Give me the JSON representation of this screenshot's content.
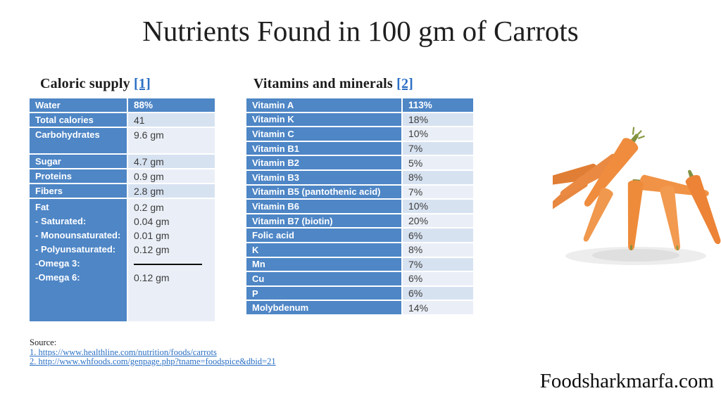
{
  "title": "Nutrients Found in 100 gm of Carrots",
  "caloric": {
    "heading": "Caloric supply",
    "heading_link": "[1]",
    "rows": [
      {
        "label": "Water",
        "value": "88%",
        "header": true
      },
      {
        "label": "Total calories",
        "value": "41"
      },
      {
        "label": "Carbohydrates",
        "value": "9.6 gm",
        "tall": true
      },
      {
        "label": "Sugar",
        "value": "4.7 gm"
      },
      {
        "label": "Proteins",
        "value": "0.9 gm"
      },
      {
        "label": "Fibers",
        "value": "2.8 gm"
      }
    ],
    "fat_block": {
      "labels": [
        "Fat",
        "- Saturated:",
        "- Monounsaturated:",
        "- Polyunsaturated:",
        "-Omega 3:",
        "-Omega 6:"
      ],
      "values": [
        "0.2 gm",
        "0.04 gm",
        "0.01 gm",
        "0.12 gm",
        "",
        "0.12 gm"
      ],
      "divider_index": 4
    }
  },
  "vitamins": {
    "heading": "Vitamins and minerals",
    "heading_link": "[2]",
    "rows": [
      {
        "label": "Vitamin A",
        "value": "113%",
        "header": true
      },
      {
        "label": "Vitamin K",
        "value": "18%"
      },
      {
        "label": "Vitamin C",
        "value": "10%"
      },
      {
        "label": "Vitamin B1",
        "value": "7%"
      },
      {
        "label": "Vitamin B2",
        "value": "5%"
      },
      {
        "label": "Vitamin B3",
        "value": "8%"
      },
      {
        "label": "Vitamin B5 (pantothenic acid)",
        "value": "7%"
      },
      {
        "label": "Vitamin B6",
        "value": "10%"
      },
      {
        "label": "Vitamin B7 (biotin)",
        "value": "20%"
      },
      {
        "label": "Folic acid",
        "value": "6%"
      },
      {
        "label": "K",
        "value": "8%"
      },
      {
        "label": "Mn",
        "value": "7%"
      },
      {
        "label": "Cu",
        "value": "6%"
      },
      {
        "label": "P",
        "value": "6%"
      },
      {
        "label": "Molybdenum",
        "value": "14%"
      }
    ]
  },
  "source": {
    "label": "Source:",
    "links": [
      "1. https://www.healthline.com/nutrition/foods/carrots",
      "2. http://www.whfoods.com/genpage.php?tname=foodspice&dbid=21"
    ]
  },
  "footer": {
    "brand": "Foodsharkmarfa.com"
  },
  "image": {
    "alt": "Pile of fresh orange carrots"
  },
  "colors": {
    "table_blue": "#4e86c6",
    "band_a": "#d7e2f1",
    "band_b": "#eaeff7",
    "link_blue": "#2a6fc4",
    "value_text": "#3b3b3b",
    "carrot_orange": "#ee8b3a",
    "carrot_green": "#7f9140"
  }
}
